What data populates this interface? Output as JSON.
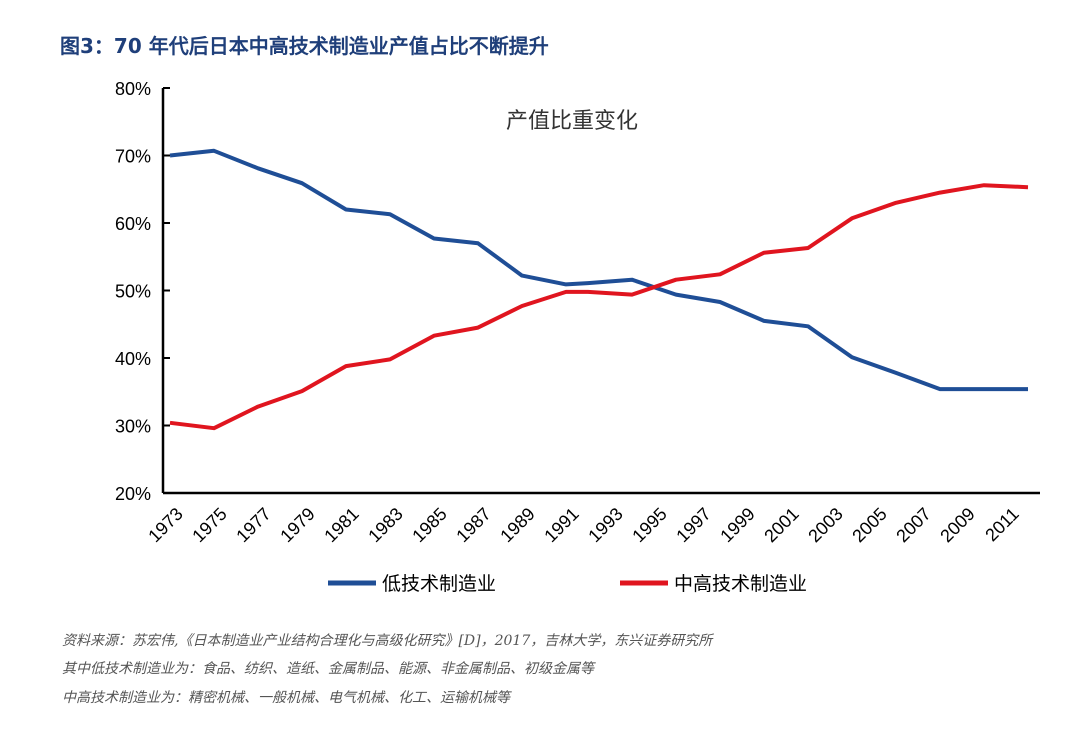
{
  "title": "图3：70 年代后日本中高技术制造业产值占比不断提升",
  "chart_data": {
    "type": "line",
    "title": "产值比重变化",
    "xlim": [
      1973,
      2012
    ],
    "ylim": [
      20,
      80
    ],
    "yticks": [
      "20%",
      "30%",
      "40%",
      "50%",
      "60%",
      "70%",
      "80%"
    ],
    "ytick_values": [
      20,
      30,
      40,
      50,
      60,
      70,
      80
    ],
    "xticks": [
      "1973",
      "1975",
      "1977",
      "1979",
      "1981",
      "1983",
      "1985",
      "1987",
      "1989",
      "1991",
      "1993",
      "1995",
      "1997",
      "1999",
      "2001",
      "2003",
      "2005",
      "2007",
      "2009",
      "2011"
    ],
    "grid": false,
    "legend_placement": "bottom",
    "x": [
      1973,
      1975,
      1977,
      1979,
      1981,
      1983,
      1985,
      1987,
      1989,
      1991,
      1992,
      1994,
      1996,
      1998,
      2000,
      2002,
      2004,
      2006,
      2008,
      2010,
      2012
    ],
    "series": [
      {
        "name": "低技术制造业",
        "color": "#1f4e96",
        "values": [
          70.0,
          70.7,
          68.1,
          65.9,
          62.0,
          61.3,
          57.7,
          57.0,
          52.2,
          50.9,
          51.1,
          51.6,
          49.4,
          48.3,
          45.5,
          44.7,
          40.1,
          37.8,
          35.4,
          35.4,
          35.4
        ]
      },
      {
        "name": "中高技术制造业",
        "color": "#e0151f",
        "values": [
          30.4,
          29.6,
          32.8,
          35.1,
          38.8,
          39.8,
          43.3,
          44.5,
          47.7,
          49.8,
          49.8,
          49.4,
          51.6,
          52.4,
          55.6,
          56.3,
          60.7,
          63.0,
          64.5,
          65.6,
          65.3
        ]
      }
    ]
  },
  "notes": [
    "资料来源：苏宏伟,《日本制造业产业结构合理化与高级化研究》[D]，2017，吉林大学，东兴证券研究所",
    "其中低技术制造业为：食品、纺织、造纸、金属制品、能源、非金属制品、初级金属等",
    "中高技术制造业为：精密机械、一般机械、电气机械、化工、运输机械等"
  ]
}
